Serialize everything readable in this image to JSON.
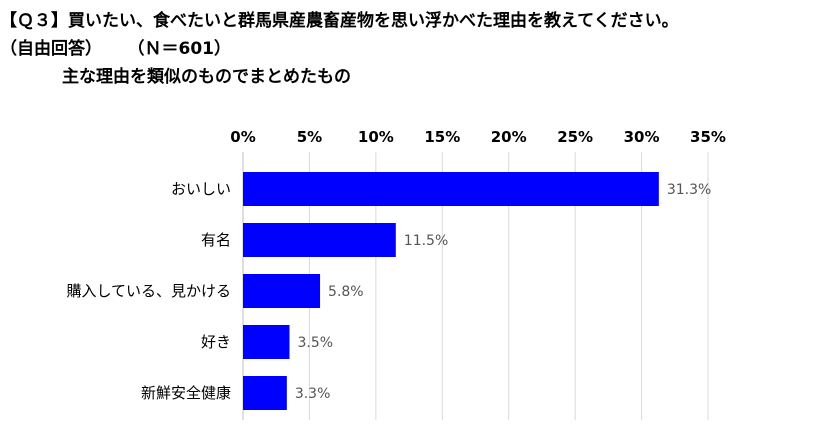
{
  "header": {
    "title": "【Ｑ３】買いたい、食べたいと群馬県産農畜産物を思い浮かべた理由を教えてください。",
    "subtitle_left": "（自由回答）",
    "subtitle_n": "（Ｎ＝601）",
    "subtitle_line2": "主な理由を類似のものでまとめたもの"
  },
  "chart_data": {
    "type": "bar",
    "orientation": "horizontal",
    "categories": [
      "おいしい",
      "有名",
      "購入している、見かける",
      "好き",
      "新鮮安全健康"
    ],
    "values": [
      31.3,
      11.5,
      5.8,
      3.5,
      3.3
    ],
    "value_labels": [
      "31.3%",
      "11.5%",
      "5.8%",
      "3.5%",
      "3.3%"
    ],
    "xlim": [
      0,
      35
    ],
    "xticks": [
      0,
      5,
      10,
      15,
      20,
      25,
      30,
      35
    ],
    "xtick_labels": [
      "0%",
      "5%",
      "10%",
      "15%",
      "20%",
      "25%",
      "30%",
      "35%"
    ],
    "axis_position": "top",
    "grid": true,
    "legend": "none",
    "bar_color": "#0000ff",
    "grid_color": "#d9d9d9"
  }
}
